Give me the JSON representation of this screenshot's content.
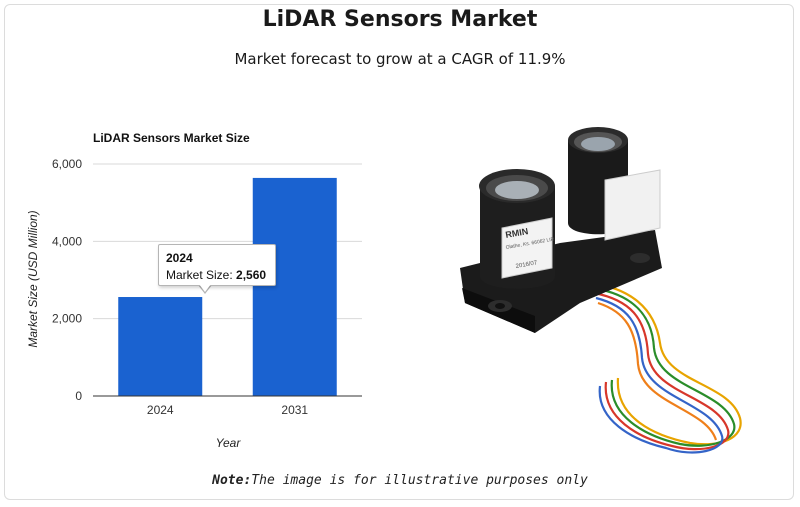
{
  "header": {
    "title": "LiDAR Sensors Market",
    "subtitle": "Market forecast to grow at a CAGR of 11.9%"
  },
  "chart_data": {
    "type": "bar",
    "title": "LiDAR Sensors Market Size",
    "xlabel": "Year",
    "ylabel": "Market Size (USD Million)",
    "categories": [
      "2024",
      "2031"
    ],
    "values": [
      2560,
      5640
    ],
    "ylim": [
      0,
      6000
    ],
    "yticks": [
      "0",
      "2,000",
      "4,000",
      "6,000"
    ],
    "bar_color": "#1a62d0",
    "grid": true,
    "legend": "none"
  },
  "tooltip": {
    "title": "2024",
    "label": "Market Size: ",
    "value": "2,560"
  },
  "sensor_label": {
    "line1": "RMIN",
    "line2": "Olathe, Ks. 66062 LIR",
    "line3": "2016/07"
  },
  "note": {
    "prefix": "Note:",
    "text": "The image is for illustrative purposes only"
  }
}
